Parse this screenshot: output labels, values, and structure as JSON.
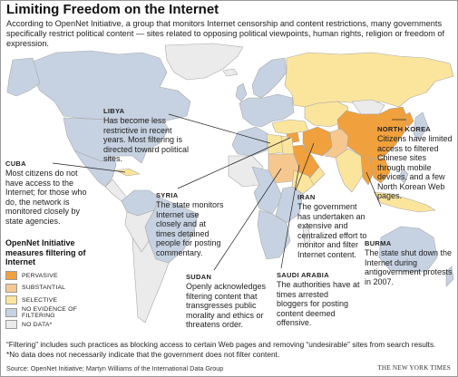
{
  "title": "Limiting Freedom on the Internet",
  "intro": "According to OpenNet Initiative, a group that monitors Internet censorship and content restrictions, many governments specifically restrict political content — sites related to opposing political viewpoints, human rights, religion or freedom of expression.",
  "colors": {
    "pervasive": "#f0a03c",
    "substantial": "#f6c890",
    "selective": "#fbe59d",
    "no_evidence": "#c6d2e1",
    "no_data": "#ebebeb",
    "water": "#ffffff",
    "border": "#a8a8a8"
  },
  "legend": {
    "title": "OpenNet Initiative measures filtering of Internet",
    "items": [
      {
        "label": "PERVASIVE",
        "color": "#f0a03c"
      },
      {
        "label": "SUBSTANTIAL",
        "color": "#f6c890"
      },
      {
        "label": "SELECTIVE",
        "color": "#fbe59d"
      },
      {
        "label": "NO EVIDENCE OF FILTERING",
        "color": "#c6d2e1"
      },
      {
        "label": "NO DATA*",
        "color": "#ebebeb"
      }
    ]
  },
  "callouts": {
    "libya": {
      "name": "LIBYA",
      "text": "Has become less restrictive in recent years. Most filtering is directed toward political sites."
    },
    "north_korea": {
      "name": "NORTH KOREA",
      "text": "Citizens have limited access to filtered Chinese sites through mobile devices, and a few North Korean Web pages."
    },
    "cuba": {
      "name": "CUBA",
      "text": "Most citizens do not have access to the Internet; for those who do, the network is monitored closely by state agencies."
    },
    "syria": {
      "name": "SYRIA",
      "text": "The state monitors Internet use closely and at times detained people for posting commentary."
    },
    "iran": {
      "name": "IRAN",
      "text": "The government has undertaken an extensive and centralized effort to monitor and filter Internet content."
    },
    "burma": {
      "name": "BURMA",
      "text": "The state shut down the Internet during antigovernment protests in 2007."
    },
    "sudan": {
      "name": "SUDAN",
      "text": "Openly acknowledges filtering content that transgresses public morality and ethics or threatens order."
    },
    "saudi_arabia": {
      "name": "SAUDI ARABIA",
      "text": "The authorities have at times arrested bloggers for posting content deemed offensive."
    }
  },
  "footnotes": {
    "filtering": "“Filtering” includes such practices as blocking access to certain Web pages and removing “undesirable” sites from search results.",
    "no_data": "*No data does not necessarily indicate that the government does not filter content."
  },
  "source": "Source: OpenNet Initiative; Martyn Williams of the International Data Group",
  "credit": "THE NEW YORK TIMES"
}
